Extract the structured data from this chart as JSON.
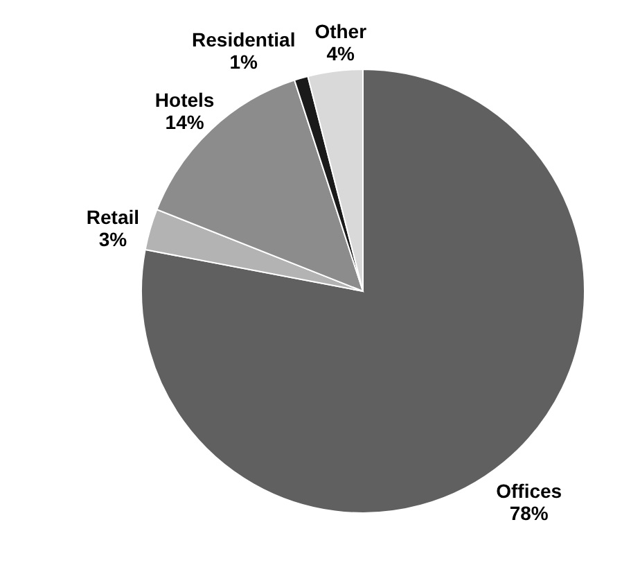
{
  "chart_data": {
    "type": "pie",
    "categories": [
      "Offices",
      "Retail",
      "Hotels",
      "Residential",
      "Other"
    ],
    "values": [
      78,
      3,
      14,
      1,
      4
    ],
    "value_labels": [
      "78%",
      "3%",
      "14%",
      "1%",
      "4%"
    ],
    "colors": [
      "#606060",
      "#b3b3b3",
      "#8c8c8c",
      "#1a1a1a",
      "#d9d9d9"
    ]
  }
}
